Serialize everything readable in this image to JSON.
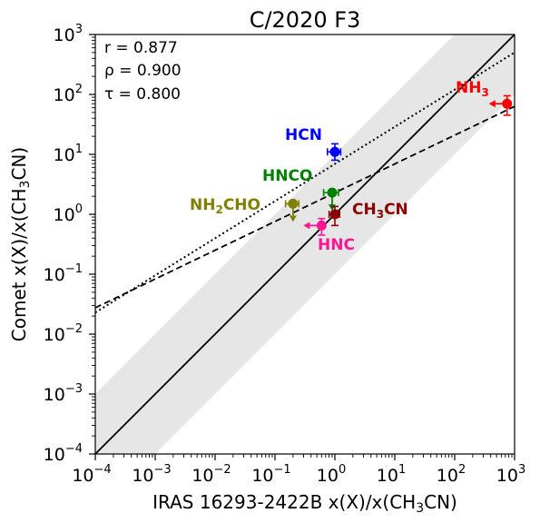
{
  "chart_data": {
    "type": "scatter",
    "title": "C/2020 F3",
    "xlabel": "IRAS 16293-2422B x(X)/x(CH₃CN)",
    "ylabel": "Comet x(X)/x(CH₃CN)",
    "x_scale": "log",
    "y_scale": "log",
    "xlim": [
      0.0001,
      1000
    ],
    "ylim": [
      0.0001,
      1000
    ],
    "x_ticks": [
      "10^-4",
      "10^-3",
      "10^-2",
      "10^-1",
      "10^0",
      "10^1",
      "10^2",
      "10^3"
    ],
    "y_ticks": [
      "10^-4",
      "10^-3",
      "10^-2",
      "10^-1",
      "10^0",
      "10^1",
      "10^2",
      "10^3"
    ],
    "grid": false,
    "stats": [
      "r = 0.877",
      "ρ = 0.900",
      "τ = 0.800"
    ],
    "shaded_band": {
      "description": "one-to-one line ± factor 10",
      "lower_factor": 0.1,
      "upper_factor": 10,
      "color": "#e6e6e6"
    },
    "lines": [
      {
        "style": "solid",
        "slope": 1.0,
        "intercept_log": 0.0
      },
      {
        "style": "dashed",
        "slope": 0.48,
        "intercept_log": 0.36
      },
      {
        "style": "dotted",
        "slope": 0.62,
        "intercept_log": 0.84
      }
    ],
    "points": [
      {
        "label": "HCN",
        "x": 1.0,
        "y": 11,
        "xerr": [
          0.25,
          0.25
        ],
        "yerr": [
          3,
          4
        ],
        "color": "#0000ff",
        "x_upper_limit": false,
        "y_upper_limit": false
      },
      {
        "label": "HNCO",
        "x": 0.9,
        "y": 2.3,
        "xerr": [
          0.25,
          0.25
        ],
        "yerr": [
          0,
          0
        ],
        "color": "#008000",
        "x_upper_limit": false,
        "y_upper_limit": true
      },
      {
        "label": "NH2CHO",
        "x": 0.2,
        "y": 1.5,
        "xerr": [
          0.05,
          0.05
        ],
        "yerr": [
          0,
          0
        ],
        "color": "#808000",
        "x_upper_limit": false,
        "y_upper_limit": true
      },
      {
        "label": "CH3CN",
        "x": 1.0,
        "y": 1.0,
        "xerr": [
          0.2,
          0.2
        ],
        "yerr": [
          0.35,
          0.35
        ],
        "color": "#8b0000",
        "x_upper_limit": false,
        "y_upper_limit": false
      },
      {
        "label": "HNC",
        "x": 0.6,
        "y": 0.65,
        "xerr": [
          0,
          0
        ],
        "yerr": [
          0.2,
          0.2
        ],
        "color": "#ff1493",
        "x_upper_limit": true,
        "y_upper_limit": false
      },
      {
        "label": "NH3",
        "x": 750,
        "y": 70,
        "xerr": [
          0,
          0
        ],
        "yerr": [
          25,
          25
        ],
        "color": "#ff0000",
        "x_upper_limit": true,
        "y_upper_limit": false
      }
    ]
  }
}
